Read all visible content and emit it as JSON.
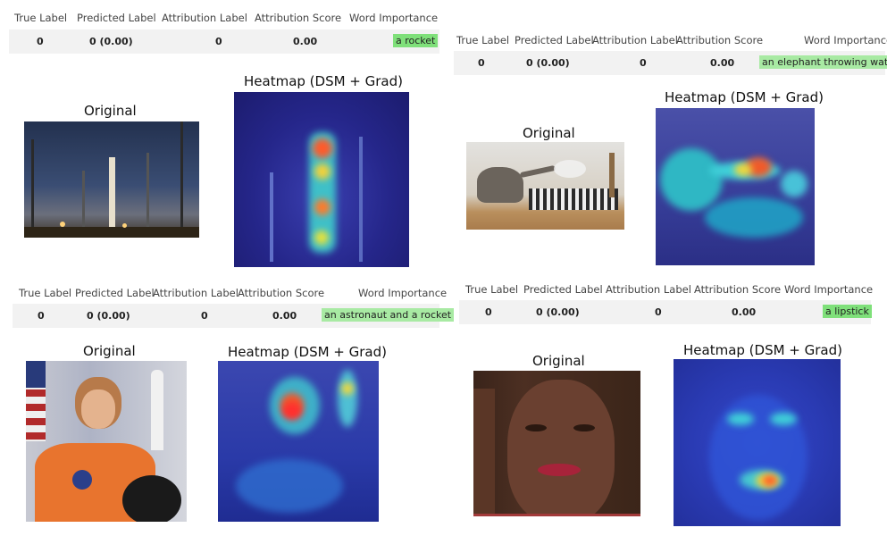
{
  "columns": {
    "true_label": "True Label",
    "predicted_label": "Predicted Label",
    "attribution_label": "Attribution Label",
    "attribution_score": "Attribution Score",
    "word_importance": "Word Importance"
  },
  "titles": {
    "original": "Original",
    "heatmap": "Heatmap (DSM + Grad)"
  },
  "panels": [
    {
      "true_label": "0",
      "predicted_label": "0 (0.00)",
      "attribution_label": "0",
      "attribution_score": "0.00",
      "word_importance": "a rocket"
    },
    {
      "true_label": "0",
      "predicted_label": "0 (0.00)",
      "attribution_label": "0",
      "attribution_score": "0.00",
      "word_importance": "an elephant throwing water"
    },
    {
      "true_label": "0",
      "predicted_label": "0 (0.00)",
      "attribution_label": "0",
      "attribution_score": "0.00",
      "word_importance": "an astronaut and a rocket"
    },
    {
      "true_label": "0",
      "predicted_label": "0 (0.00)",
      "attribution_label": "0",
      "attribution_score": "0.00",
      "word_importance": "a lipstick"
    }
  ],
  "images": {
    "p1_original": "rocket-launch-photo",
    "p1_heatmap": "rocket-heatmap",
    "p2_original": "elephant-zebras-photo",
    "p2_heatmap": "elephant-heatmap",
    "p3_original": "astronaut-portrait-photo",
    "p3_heatmap": "astronaut-heatmap",
    "p4_original": "face-portrait-photo",
    "p4_heatmap": "lipstick-heatmap"
  }
}
